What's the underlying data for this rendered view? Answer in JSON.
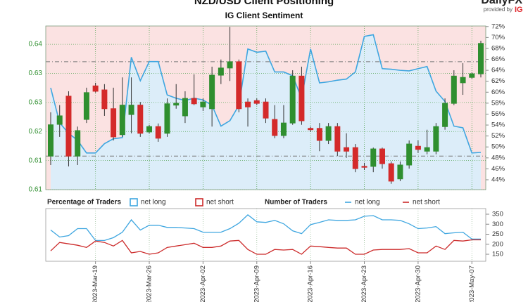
{
  "header": {
    "title": "NZD/USD Client Positioning",
    "subtitle": "IG Client Sentiment",
    "brand": "DailyFX",
    "provided_by": "provided by",
    "provider": "IG"
  },
  "chart_data": [
    {
      "type": "candlestick",
      "legend_title": "Percentage of Traders",
      "x": [
        "2023-Mar-13",
        "2023-Mar-14",
        "2023-Mar-15",
        "2023-Mar-16",
        "2023-Mar-17",
        "2023-Mar-19",
        "2023-Mar-20",
        "2023-Mar-21",
        "2023-Mar-22",
        "2023-Mar-23",
        "2023-Mar-24",
        "2023-Mar-26",
        "2023-Mar-27",
        "2023-Mar-28",
        "2023-Mar-29",
        "2023-Mar-30",
        "2023-Mar-31",
        "2023-Apr-02",
        "2023-Apr-03",
        "2023-Apr-04",
        "2023-Apr-05",
        "2023-Apr-06",
        "2023-Apr-07",
        "2023-Apr-09",
        "2023-Apr-10",
        "2023-Apr-11",
        "2023-Apr-12",
        "2023-Apr-13",
        "2023-Apr-14",
        "2023-Apr-16",
        "2023-Apr-17",
        "2023-Apr-18",
        "2023-Apr-19",
        "2023-Apr-20",
        "2023-Apr-21",
        "2023-Apr-23",
        "2023-Apr-24",
        "2023-Apr-25",
        "2023-Apr-26",
        "2023-Apr-27",
        "2023-Apr-28",
        "2023-Apr-30",
        "2023-May-01",
        "2023-May-02",
        "2023-May-03",
        "2023-May-04",
        "2023-May-05",
        "2023-May-07",
        "2023-May-08"
      ],
      "open": [
        0.614,
        0.6211,
        0.6274,
        0.614,
        0.6222,
        0.6297,
        0.6288,
        0.6246,
        0.6188,
        0.6233,
        0.6254,
        0.6194,
        0.6206,
        0.6191,
        0.6254,
        0.623,
        0.6269,
        0.625,
        0.6246,
        0.6321,
        0.6337,
        0.6351,
        0.6261,
        0.6264,
        0.6261,
        0.6222,
        0.6186,
        0.6214,
        0.6319,
        0.6202,
        0.6202,
        0.6175,
        0.6206,
        0.6159,
        0.6159,
        0.6117,
        0.6117,
        0.6156,
        0.6123,
        0.6089,
        0.612,
        0.6162,
        0.6151,
        0.6151,
        0.6206,
        0.6258,
        0.6304,
        0.6316,
        0.6324
      ],
      "high": [
        0.6238,
        0.6254,
        0.6285,
        0.6206,
        0.6293,
        0.6304,
        0.6301,
        0.6293,
        0.6316,
        0.6316,
        0.6261,
        0.621,
        0.6213,
        0.6269,
        0.6301,
        0.6285,
        0.6323,
        0.6269,
        0.634,
        0.6356,
        0.6429,
        0.6356,
        0.6269,
        0.6269,
        0.6269,
        0.6254,
        0.6254,
        0.6332,
        0.634,
        0.6206,
        0.6214,
        0.6214,
        0.6214,
        0.6191,
        0.6167,
        0.6125,
        0.6159,
        0.6159,
        0.6128,
        0.6128,
        0.6175,
        0.6175,
        0.6199,
        0.6214,
        0.6269,
        0.6332,
        0.6348,
        0.6327,
        0.6398
      ],
      "low": [
        0.612,
        0.6183,
        0.6117,
        0.612,
        0.6214,
        0.6282,
        0.623,
        0.6175,
        0.6183,
        0.6191,
        0.6183,
        0.6191,
        0.6172,
        0.6183,
        0.6246,
        0.6214,
        0.6254,
        0.6241,
        0.6206,
        0.6301,
        0.6308,
        0.6238,
        0.6206,
        0.6254,
        0.6214,
        0.618,
        0.618,
        0.621,
        0.621,
        0.6194,
        0.6151,
        0.6167,
        0.614,
        0.6136,
        0.6104,
        0.6109,
        0.6104,
        0.6112,
        0.6078,
        0.6084,
        0.6112,
        0.6147,
        0.6144,
        0.6144,
        0.6199,
        0.6254,
        0.6277,
        0.6313,
        0.6316
      ],
      "close": [
        0.621,
        0.623,
        0.614,
        0.6197,
        0.6282,
        0.6285,
        0.6246,
        0.6183,
        0.6254,
        0.6254,
        0.6191,
        0.6206,
        0.618,
        0.6257,
        0.6258,
        0.6269,
        0.6257,
        0.6261,
        0.6321,
        0.6337,
        0.6351,
        0.6246,
        0.625,
        0.6258,
        0.6225,
        0.6186,
        0.6214,
        0.6319,
        0.6219,
        0.6199,
        0.6175,
        0.6206,
        0.6151,
        0.6151,
        0.6112,
        0.6115,
        0.6156,
        0.6123,
        0.6084,
        0.612,
        0.6167,
        0.6155,
        0.6159,
        0.6206,
        0.6258,
        0.6319,
        0.6316,
        0.6324,
        0.6392
      ],
      "up_color": "#2f8f2f",
      "down_color": "#d42a2a",
      "ylim": [
        0.6065,
        0.6431
      ],
      "yticks": [
        {
          "value": 0.639,
          "label": "0.64"
        },
        {
          "value": 0.6325,
          "label": "0.63"
        },
        {
          "value": 0.626,
          "label": "0.63"
        },
        {
          "value": 0.6195,
          "label": "0.62"
        },
        {
          "value": 0.613,
          "label": "0.61"
        },
        {
          "value": 0.6065,
          "label": "0.61"
        }
      ],
      "y2lim": [
        42.2,
        72.1
      ],
      "y2ticks": [
        {
          "value": 44,
          "label": "44%"
        },
        {
          "value": 46,
          "label": "46%"
        },
        {
          "value": 48,
          "label": "48%"
        },
        {
          "value": 50,
          "label": "50%"
        },
        {
          "value": 52,
          "label": "52%"
        },
        {
          "value": 54,
          "label": "54%"
        },
        {
          "value": 56,
          "label": "56%"
        },
        {
          "value": 58,
          "label": "58%"
        },
        {
          "value": 60,
          "label": "60%"
        },
        {
          "value": 62,
          "label": "62%"
        },
        {
          "value": 64,
          "label": "64%"
        },
        {
          "value": 66,
          "label": "66%"
        },
        {
          "value": 68,
          "label": "68%"
        },
        {
          "value": 70,
          "label": "70%"
        },
        {
          "value": 72,
          "label": "72%"
        }
      ],
      "hlines": [
        0.6351,
        0.614
      ],
      "hline_color": "#777777",
      "grid": true,
      "grid_color": "#5aa85a",
      "series": [
        {
          "name": "net long",
          "color": "#3ea6e0",
          "fill": "#dcedf9",
          "axis": "y2",
          "values": [
            60.8,
            54.4,
            52.5,
            51.2,
            48.9,
            48.9,
            50.6,
            51.5,
            51.7,
            66.4,
            62.1,
            65.6,
            65.6,
            59.5,
            58.9,
            58.5,
            58.9,
            58.6,
            57.6,
            53.8,
            54.8,
            57.6,
            67.9,
            67.3,
            67.5,
            63.7,
            63.7,
            63.0,
            58.9,
            67.9,
            61.7,
            61.9,
            62.2,
            62.4,
            63.7,
            70.2,
            70.5,
            64.3,
            64.2,
            64.0,
            63.9,
            64.3,
            64.7,
            60.2,
            58.3,
            53.8,
            53.5,
            48.9,
            49.0
          ]
        },
        {
          "name": "net short",
          "color": "#cc2a2a",
          "fill": "#fbe2e2"
        }
      ]
    },
    {
      "type": "line",
      "legend_title": "Number of Traders",
      "x": [
        "2023-Mar-13",
        "2023-Mar-14",
        "2023-Mar-15",
        "2023-Mar-16",
        "2023-Mar-17",
        "2023-Mar-19",
        "2023-Mar-20",
        "2023-Mar-21",
        "2023-Mar-22",
        "2023-Mar-23",
        "2023-Mar-24",
        "2023-Mar-26",
        "2023-Mar-27",
        "2023-Mar-28",
        "2023-Mar-29",
        "2023-Mar-30",
        "2023-Mar-31",
        "2023-Apr-02",
        "2023-Apr-03",
        "2023-Apr-04",
        "2023-Apr-05",
        "2023-Apr-06",
        "2023-Apr-07",
        "2023-Apr-09",
        "2023-Apr-10",
        "2023-Apr-11",
        "2023-Apr-12",
        "2023-Apr-13",
        "2023-Apr-14",
        "2023-Apr-16",
        "2023-Apr-17",
        "2023-Apr-18",
        "2023-Apr-19",
        "2023-Apr-20",
        "2023-Apr-21",
        "2023-Apr-23",
        "2023-Apr-24",
        "2023-Apr-25",
        "2023-Apr-26",
        "2023-Apr-27",
        "2023-Apr-28",
        "2023-Apr-30",
        "2023-May-01",
        "2023-May-02",
        "2023-May-03",
        "2023-May-04",
        "2023-May-05",
        "2023-May-07",
        "2023-May-08"
      ],
      "xticks": [
        "2023-Mar-19",
        "2023-Mar-26",
        "2023-Apr-02",
        "2023-Apr-09",
        "2023-Apr-16",
        "2023-Apr-23",
        "2023-Apr-30",
        "2023-May-07"
      ],
      "ylim": [
        115,
        378
      ],
      "yticks": [
        150,
        200,
        250,
        300,
        350
      ],
      "series": [
        {
          "name": "net long",
          "color": "#3ea6e0",
          "values": [
            271,
            236,
            243,
            278,
            278,
            219,
            219,
            233,
            260,
            322,
            271,
            295,
            295,
            284,
            284,
            281,
            278,
            260,
            260,
            260,
            278,
            305,
            347,
            312,
            309,
            319,
            302,
            267,
            253,
            298,
            309,
            322,
            319,
            319,
            322,
            340,
            343,
            322,
            322,
            319,
            302,
            278,
            281,
            288,
            253,
            257,
            260,
            226,
            226
          ]
        },
        {
          "name": "net short",
          "color": "#cc2a2a",
          "values": [
            167,
            209,
            202,
            195,
            184,
            216,
            209,
            191,
            219,
            157,
            164,
            150,
            157,
            184,
            191,
            198,
            205,
            184,
            184,
            191,
            216,
            219,
            174,
            150,
            150,
            174,
            171,
            174,
            150,
            191,
            188,
            184,
            181,
            181,
            150,
            150,
            171,
            174,
            174,
            174,
            178,
            157,
            157,
            191,
            174,
            219,
            216,
            222,
            222
          ]
        }
      ]
    }
  ]
}
